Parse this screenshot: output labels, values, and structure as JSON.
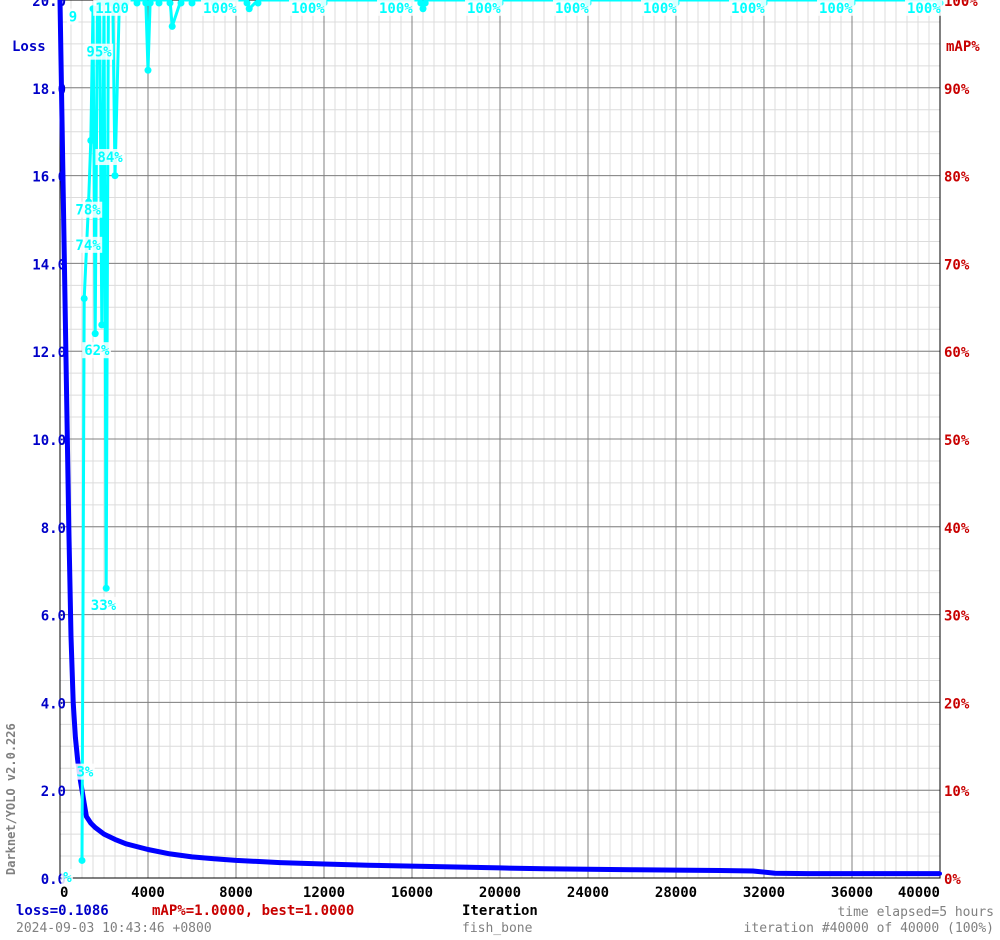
{
  "chart_data": {
    "type": "line",
    "title": "",
    "xlabel": "Iteration",
    "ylabel_left": "Loss",
    "ylabel_right": "mAP%",
    "xlim": [
      0,
      40000
    ],
    "ylim_left": [
      0,
      20
    ],
    "ylim_right": [
      0,
      100
    ],
    "x_ticks": [
      "0",
      "4000",
      "8000",
      "12000",
      "16000",
      "20000",
      "24000",
      "28000",
      "32000",
      "36000",
      "40000"
    ],
    "y_left_ticks": [
      "0.0",
      "2.0",
      "4.0",
      "6.0",
      "8.0",
      "10.0",
      "12.0",
      "14.0",
      "16.0",
      "18.0",
      "20.0"
    ],
    "y_right_ticks": [
      "0%",
      "10%",
      "20%",
      "30%",
      "40%",
      "50%",
      "60%",
      "70%",
      "80%",
      "90%",
      "100%"
    ],
    "grid": true,
    "colors": {
      "loss": "#0000ff",
      "map": "#00ffff",
      "left_axis": "#0000c8",
      "right_axis": "#c80000",
      "grid_major": "#808080",
      "grid_minor": "#dcdcdc"
    },
    "series": [
      {
        "name": "Loss",
        "x": [
          0,
          100,
          200,
          300,
          400,
          500,
          600,
          700,
          800,
          900,
          1000,
          1100,
          1200,
          1400,
          1600,
          2000,
          2500,
          3000,
          4000,
          5000,
          6000,
          7000,
          8000,
          10000,
          12000,
          14000,
          16000,
          18000,
          20000,
          22000,
          24000,
          26000,
          28000,
          30000,
          31500,
          32500,
          34000,
          36000,
          38000,
          40000
        ],
        "values": [
          20.0,
          17.0,
          14.0,
          11.0,
          8.0,
          5.5,
          4.0,
          3.2,
          2.7,
          2.3,
          2.0,
          1.7,
          1.4,
          1.25,
          1.15,
          1.0,
          0.88,
          0.78,
          0.65,
          0.55,
          0.48,
          0.44,
          0.4,
          0.35,
          0.32,
          0.29,
          0.27,
          0.25,
          0.23,
          0.21,
          0.2,
          0.19,
          0.18,
          0.17,
          0.16,
          0.11,
          0.1,
          0.1,
          0.1,
          0.1
        ]
      },
      {
        "name": "mAP%",
        "x": [
          1000,
          1100,
          1300,
          1400,
          1500,
          1600,
          1700,
          1800,
          1900,
          2000,
          2100,
          2200,
          2300,
          2400,
          2500,
          2700,
          3000,
          3500,
          3900,
          4000,
          4100,
          4500,
          5000,
          5100,
          5500,
          6000,
          7000,
          8500,
          8600,
          9000,
          12000,
          16400,
          16500,
          16600,
          20000,
          24000,
          28000,
          32000,
          36000,
          40000
        ],
        "values": [
          2,
          66,
          77,
          84,
          99,
          62,
          99,
          100,
          63,
          100,
          33,
          100,
          100,
          100,
          80,
          100,
          100,
          100,
          100,
          92,
          100,
          100,
          100,
          97,
          100,
          100,
          100,
          100,
          99,
          100,
          100,
          100,
          99,
          100,
          100,
          100,
          100,
          100,
          100,
          100
        ]
      }
    ],
    "map_labels": [
      {
        "x": 150,
        "map": 0,
        "text": "%"
      },
      {
        "x": 750,
        "map": 12,
        "text": "3%"
      },
      {
        "x": 1400,
        "map": 31,
        "text": "33%"
      },
      {
        "x": 1100,
        "map": 60,
        "text": "62%"
      },
      {
        "x": 700,
        "map": 72,
        "text": "74%"
      },
      {
        "x": 700,
        "map": 76,
        "text": "78%"
      },
      {
        "x": 1700,
        "map": 82,
        "text": "84%"
      },
      {
        "x": 1200,
        "map": 94,
        "text": "95%"
      },
      {
        "x": 400,
        "map": 98,
        "text": "9"
      },
      {
        "x": 1600,
        "map": 99,
        "text": "1100"
      },
      {
        "x": 6500,
        "map": 99,
        "text": "100%"
      },
      {
        "x": 10500,
        "map": 99,
        "text": "100%"
      },
      {
        "x": 14500,
        "map": 99,
        "text": "100%"
      },
      {
        "x": 18500,
        "map": 99,
        "text": "100%"
      },
      {
        "x": 22500,
        "map": 99,
        "text": "100%"
      },
      {
        "x": 26500,
        "map": 99,
        "text": "100%"
      },
      {
        "x": 30500,
        "map": 99,
        "text": "100%"
      },
      {
        "x": 34500,
        "map": 99,
        "text": "100%"
      },
      {
        "x": 38500,
        "map": 99,
        "text": "100%"
      }
    ],
    "annotations": {
      "vertical_title": "Darknet/YOLO v2.0.226",
      "loss_text": "loss=0.1086",
      "map_text": "mAP%=1.0000,  best=1.0000",
      "xlabel": "Iteration",
      "time_elapsed": "time elapsed=5 hours",
      "date": "2024-09-03 10:43:46 +0800",
      "dataset": "fish_bone",
      "iteration_status": "iteration #40000 of 40000 (100%)"
    }
  }
}
